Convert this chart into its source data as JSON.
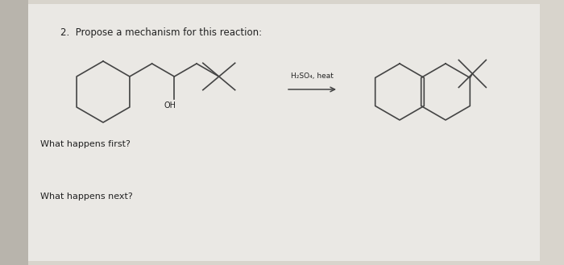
{
  "title": "2.  Propose a mechanism for this reaction:",
  "question1": "What happens first?",
  "question2": "What happens next?",
  "reagent": "H₂SO₄, heat",
  "bg_color": "#d8d4cc",
  "page_color": "#eceae6",
  "line_color": "#444444",
  "text_color": "#222222",
  "title_fontsize": 8.5,
  "label_fontsize": 8.0,
  "reagent_fontsize": 6.5
}
